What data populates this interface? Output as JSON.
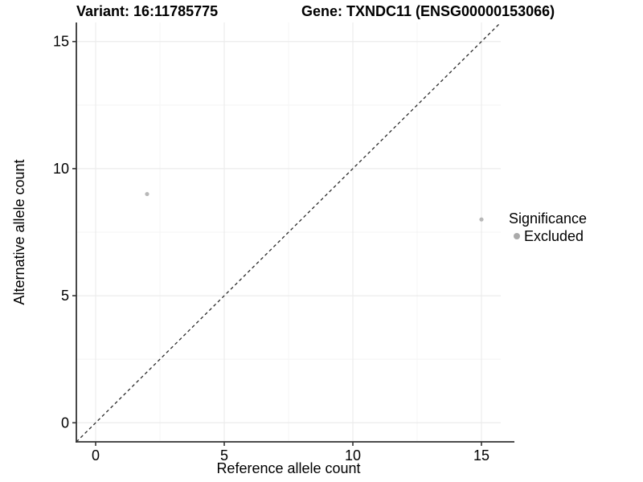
{
  "figure": {
    "title_variant": "Variant: 16:11785775",
    "title_gene": "Gene: TXNDC11 (ENSG00000153066)"
  },
  "chart_data": {
    "type": "scatter",
    "title": "Variant: 16:11785775 — Gene: TXNDC11 (ENSG00000153066)",
    "xlabel": "Reference allele count",
    "ylabel": "Alternative allele count",
    "xlim": [
      -0.75,
      15.75
    ],
    "ylim": [
      -0.75,
      15.75
    ],
    "x_ticks": [
      0,
      5,
      10,
      15
    ],
    "y_ticks": [
      0,
      5,
      10,
      15
    ],
    "x_minor_ticks": [
      2.5,
      7.5,
      12.5
    ],
    "y_minor_ticks": [
      2.5,
      7.5,
      12.5
    ],
    "grid": true,
    "points": [
      {
        "x": 2,
        "y": 9,
        "significance": "Excluded"
      },
      {
        "x": 15,
        "y": 8,
        "significance": "Excluded"
      }
    ],
    "reference_line": {
      "type": "identity",
      "equation": "y = x",
      "style": "dashed"
    },
    "legend": {
      "title": "Significance",
      "position": "right",
      "items": [
        {
          "label": "Excluded",
          "color": "#aaaaaa"
        }
      ]
    },
    "colors": {
      "point": "#b8b8b8",
      "grid_major": "#ececec",
      "grid_minor": "#f4f4f4",
      "axis": "#333333",
      "dashed_line": "#2a2a2a",
      "text": "#000000",
      "background": "#ffffff"
    }
  }
}
